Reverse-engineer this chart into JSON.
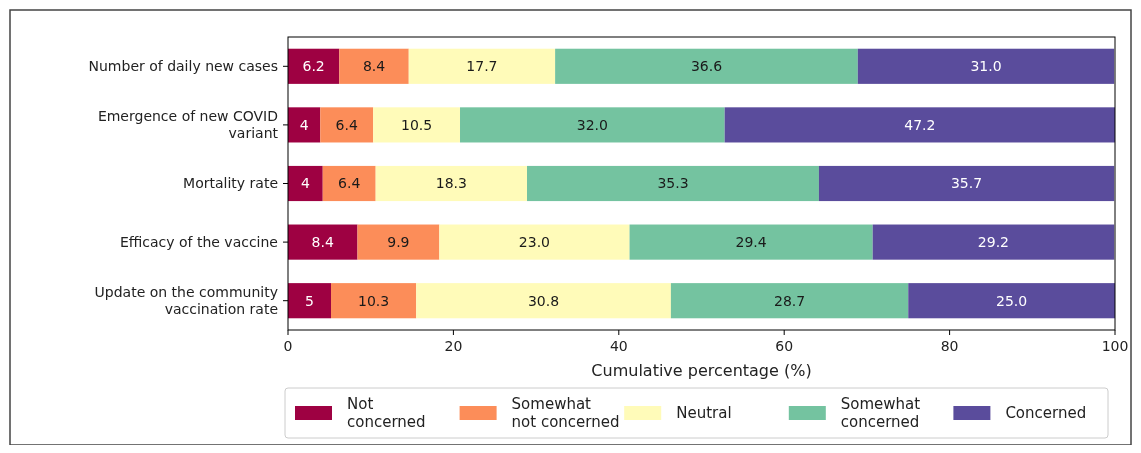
{
  "chart_data": {
    "type": "bar",
    "orientation": "horizontal",
    "stacked": true,
    "xlabel": "Cumulative percentage (%)",
    "categories": [
      "Number of daily new cases",
      "Emergence of new COVID variant",
      "Mortality rate",
      "Efficacy of the vaccine",
      "Update on the community vaccination rate"
    ],
    "series": [
      {
        "name": "Not concerned",
        "color": "#9e0142",
        "values": [
          6.2,
          3.9,
          4.2,
          8.4,
          5.2
        ],
        "value_labels": [
          "6.2",
          "4",
          "4",
          "8.4",
          "5"
        ]
      },
      {
        "name": "Somewhat not concerned",
        "color": "#fc8d59",
        "values": [
          8.4,
          6.4,
          6.4,
          9.9,
          10.3
        ],
        "value_labels": [
          "8.4",
          "6.4",
          "6.4",
          "9.9",
          "10.3"
        ]
      },
      {
        "name": "Neutral",
        "color": "#fffbb9",
        "values": [
          17.7,
          10.5,
          18.3,
          23.0,
          30.8
        ],
        "value_labels": [
          "17.7",
          "10.5",
          "18.3",
          "23.0",
          "30.8"
        ]
      },
      {
        "name": "Somewhat concerned",
        "color": "#74c3a0",
        "values": [
          36.6,
          32.0,
          35.3,
          29.4,
          28.7
        ],
        "value_labels": [
          "36.6",
          "32.0",
          "35.3",
          "29.4",
          "28.7"
        ]
      },
      {
        "name": "Concerned",
        "color": "#5a4c9c",
        "values": [
          31.0,
          47.2,
          35.7,
          29.2,
          25.0
        ],
        "value_labels": [
          "31.0",
          "47.2",
          "35.7",
          "29.2",
          "25.0"
        ]
      }
    ],
    "xlim": [
      0,
      100
    ],
    "xticks": [
      0,
      20,
      40,
      60,
      80,
      100
    ],
    "legend": "bottom"
  }
}
